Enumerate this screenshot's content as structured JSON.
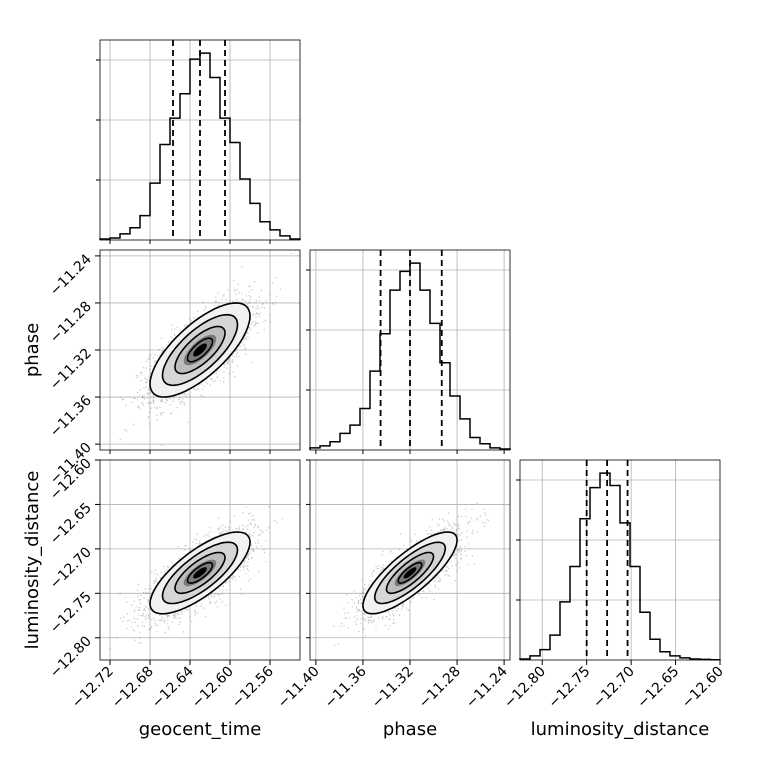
{
  "chart_data": {
    "type": "corner",
    "parameters": [
      "geocent_time",
      "phase",
      "luminosity_distance"
    ],
    "ranges": {
      "geocent_time": [
        -12.73,
        -12.53
      ],
      "phase": [
        -11.405,
        -11.235
      ],
      "luminosity_distance": [
        -12.825,
        -12.6
      ]
    },
    "ticks": {
      "geocent_time": [
        -12.72,
        -12.68,
        -12.64,
        -12.6,
        -12.56
      ],
      "phase": [
        -11.4,
        -11.36,
        -11.32,
        -11.28,
        -11.24
      ],
      "luminosity_distance": [
        -12.8,
        -12.75,
        -12.7,
        -12.65,
        -12.6
      ]
    },
    "tick_labels": {
      "geocent_time": [
        "−12.72",
        "−12.68",
        "−12.64",
        "−12.60",
        "−12.56"
      ],
      "phase": [
        "−11.40",
        "−11.36",
        "−11.32",
        "−11.28",
        "−11.24"
      ],
      "luminosity_distance": [
        "−12.80",
        "−12.75",
        "−12.70",
        "−12.65",
        "−12.60"
      ]
    },
    "quantiles": {
      "geocent_time": [
        -12.657,
        -12.63,
        -12.605
      ],
      "phase": [
        -11.345,
        -11.32,
        -11.293
      ],
      "luminosity_distance": [
        -12.75,
        -12.727,
        -12.704
      ]
    },
    "histograms": {
      "geocent_time": {
        "edges": [
          -12.73,
          -12.72,
          -12.71,
          -12.7,
          -12.69,
          -12.68,
          -12.67,
          -12.66,
          -12.65,
          -12.64,
          -12.63,
          -12.62,
          -12.61,
          -12.6,
          -12.59,
          -12.58,
          -12.57,
          -12.56,
          -12.55,
          -12.54,
          -12.53
        ],
        "counts": [
          0.5,
          1,
          3,
          6,
          12,
          28,
          47,
          60,
          72,
          89,
          92,
          80,
          60,
          48,
          30,
          18,
          9,
          5,
          2,
          0.5
        ]
      },
      "phase": {
        "edges": [
          -11.405,
          -11.3965,
          -11.388,
          -11.3795,
          -11.371,
          -11.3625,
          -11.354,
          -11.3455,
          -11.337,
          -11.3285,
          -11.32,
          -11.3115,
          -11.303,
          -11.2945,
          -11.286,
          -11.2775,
          -11.269,
          -11.2605,
          -11.252,
          -11.2435,
          -11.235
        ],
        "counts": [
          1,
          2,
          4,
          8,
          12,
          20,
          38,
          56,
          77,
          86,
          90,
          77,
          61,
          42,
          26,
          15,
          6,
          3,
          1,
          0.5
        ]
      },
      "luminosity_distance": {
        "edges": [
          -12.825,
          -12.81375,
          -12.8025,
          -12.79125,
          -12.78,
          -12.76875,
          -12.7575,
          -12.74625,
          -12.735,
          -12.72375,
          -12.7125,
          -12.70125,
          -12.69,
          -12.67875,
          -12.6675,
          -12.65625,
          -12.645,
          -12.63375,
          -12.6225,
          -12.61125,
          -12.6
        ],
        "counts": [
          0.5,
          2,
          5,
          12,
          28,
          45,
          68,
          83,
          90,
          84,
          66,
          45,
          23,
          10,
          4,
          2,
          1,
          0.5,
          0.3,
          0.1
        ]
      }
    },
    "joint": [
      {
        "x": "geocent_time",
        "y": "phase",
        "mean": [
          -12.63,
          -11.32
        ],
        "sd": [
          0.025,
          0.02
        ],
        "rho": 0.72
      },
      {
        "x": "geocent_time",
        "y": "luminosity_distance",
        "mean": [
          -12.63,
          -12.727
        ],
        "sd": [
          0.025,
          0.023
        ],
        "rho": 0.75
      },
      {
        "x": "phase",
        "y": "luminosity_distance",
        "mean": [
          -11.32,
          -12.727
        ],
        "sd": [
          0.02,
          0.023
        ],
        "rho": 0.8
      }
    ],
    "contour_levels_sigma": [
      0.5,
      1.0,
      1.5,
      2.0
    ],
    "grid": true,
    "colors": {
      "line": "#000000",
      "grid": "#b0b0b0",
      "scatter": "#555555"
    }
  }
}
